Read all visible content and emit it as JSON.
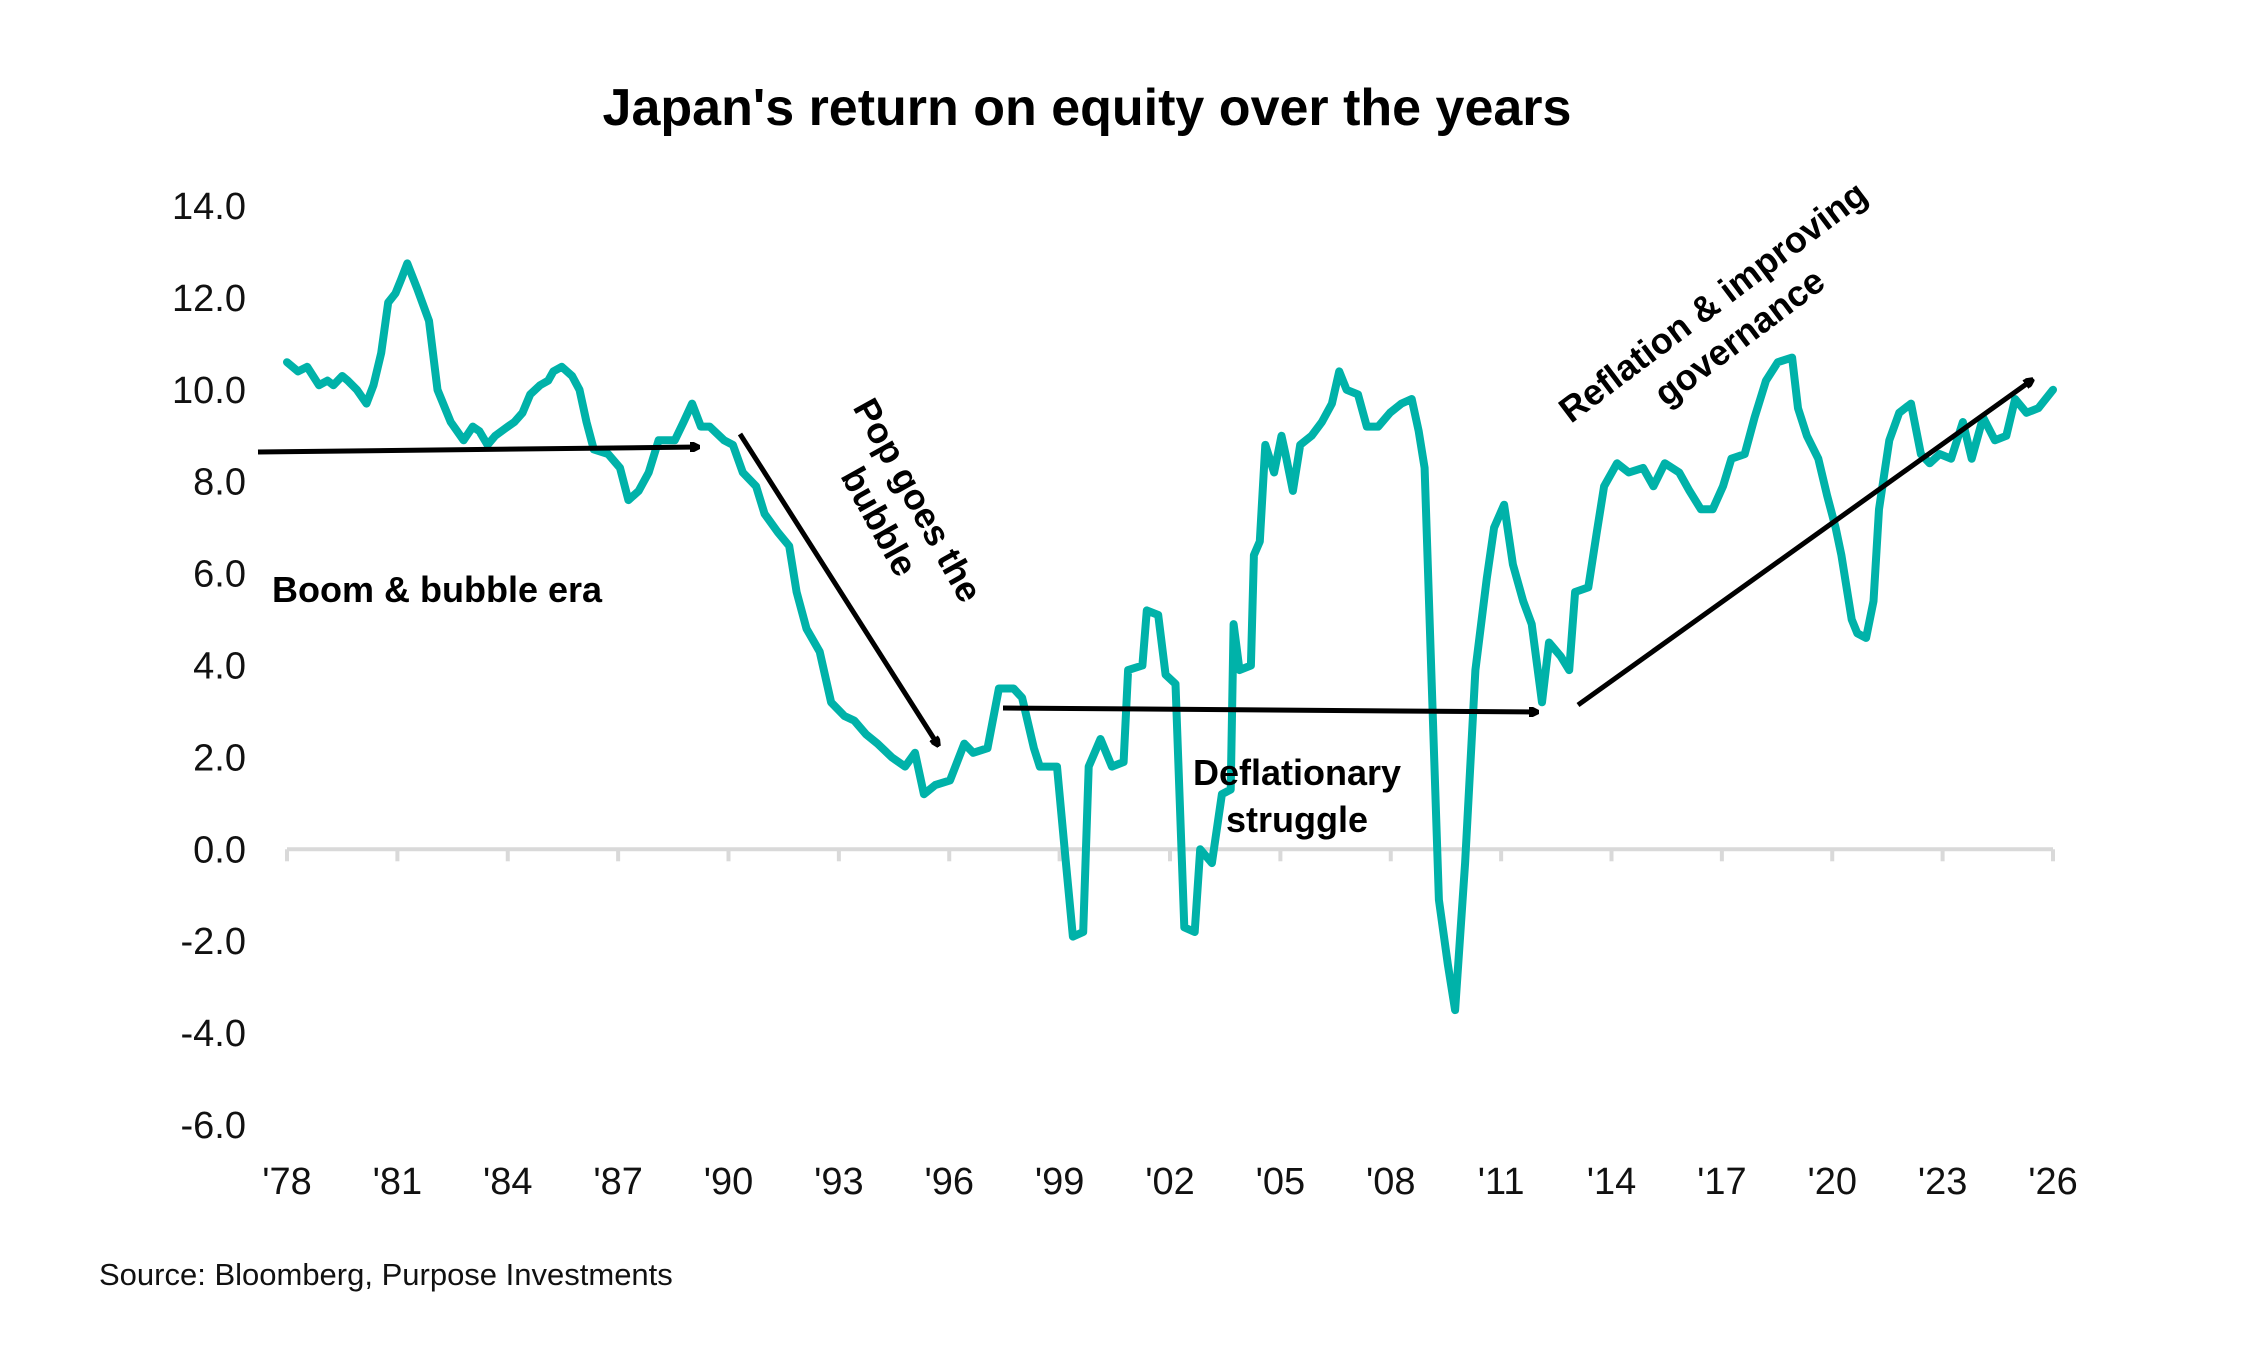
{
  "chart_data": {
    "type": "line",
    "title": "Japan's return on equity over the years",
    "xlabel": "",
    "ylabel": "",
    "ylim": [
      -6,
      14
    ],
    "xlim": [
      1978,
      2026
    ],
    "grid": false,
    "y_ticks": [
      "14.0",
      "12.0",
      "10.0",
      "8.0",
      "6.0",
      "4.0",
      "2.0",
      "0.0",
      "-2.0",
      "-4.0",
      "-6.0"
    ],
    "x_ticks": [
      "'78",
      "'81",
      "'84",
      "'87",
      "'90",
      "'93",
      "'96",
      "'99",
      "'02",
      "'05",
      "'08",
      "'11",
      "'14",
      "'17",
      "'20",
      "'23",
      "'26"
    ],
    "line_color": "#00B2A9",
    "series": [
      {
        "x": [
          1978.0,
          1978.3,
          1978.55,
          1978.87,
          1979.1,
          1979.26,
          1979.5,
          1979.65,
          1979.9,
          1980.16,
          1980.35,
          1980.56,
          1980.75,
          1980.95,
          1981.1,
          1981.27,
          1981.54,
          1981.86,
          1982.09,
          1982.45,
          1982.8,
          1983.05,
          1983.23,
          1983.45,
          1983.66,
          1984.0,
          1984.18,
          1984.4,
          1984.61,
          1984.88,
          1985.1,
          1985.24,
          1985.47,
          1985.75,
          1985.95,
          1986.14,
          1986.34,
          1986.73,
          1987.05,
          1987.28,
          1987.56,
          1987.83,
          1988.1,
          1988.54,
          1988.78,
          1989.01,
          1989.25,
          1989.49,
          1989.88,
          1990.12,
          1990.39,
          1990.75,
          1990.98,
          1991.34,
          1991.65,
          1991.85,
          1992.12,
          1992.48,
          1992.79,
          1993.15,
          1993.42,
          1993.74,
          1994.05,
          1994.44,
          1994.8,
          1995.07,
          1995.31,
          1995.62,
          1996.02,
          1996.41,
          1996.65,
          1997.04,
          1997.35,
          1997.75,
          1997.98,
          1998.3,
          1998.46,
          1998.93,
          1999.16,
          1999.36,
          1999.64,
          1999.79,
          2000.11,
          2000.42,
          2000.74,
          2000.86,
          2001.25,
          2001.37,
          2001.68,
          2001.88,
          2002.15,
          2002.39,
          2002.67,
          2002.82,
          2003.14,
          2003.41,
          2003.65,
          2003.73,
          2003.89,
          2004.2,
          2004.28,
          2004.44,
          2004.59,
          2004.83,
          2005.03,
          2005.14,
          2005.34,
          2005.54,
          2005.85,
          2006.13,
          2006.4,
          2006.6,
          2006.8,
          2007.11,
          2007.35,
          2007.66,
          2007.98,
          2008.29,
          2008.57,
          2008.76,
          2008.92,
          2009.08,
          2009.31,
          2009.55,
          2009.75,
          2010.02,
          2010.3,
          2010.61,
          2010.81,
          2011.08,
          2011.32,
          2011.6,
          2011.83,
          2012.11,
          2012.3,
          2012.62,
          2012.85,
          2013.01,
          2013.37,
          2013.6,
          2013.8,
          2014.15,
          2014.47,
          2014.86,
          2015.14,
          2015.45,
          2015.84,
          2016.12,
          2016.43,
          2016.75,
          2017.03,
          2017.26,
          2017.62,
          2017.89,
          2018.2,
          2018.52,
          2018.91,
          2019.07,
          2019.31,
          2019.62,
          2019.86,
          2020.09,
          2020.25,
          2020.53,
          2020.68,
          2020.92,
          2021.12,
          2021.27,
          2021.55,
          2021.82,
          2022.14,
          2022.41,
          2022.65,
          2022.92,
          2023.23,
          2023.55,
          2023.79,
          2024.1,
          2024.42,
          2024.73,
          2024.97,
          2025.28,
          2025.6,
          2026.0
        ],
        "y": [
          10.6,
          10.4,
          10.5,
          10.1,
          10.2,
          10.1,
          10.3,
          10.2,
          10.0,
          9.7,
          10.1,
          10.8,
          11.9,
          12.1,
          12.4,
          12.75,
          12.2,
          11.5,
          10.0,
          9.3,
          8.9,
          9.2,
          9.1,
          8.8,
          9.0,
          9.2,
          9.3,
          9.5,
          9.9,
          10.1,
          10.2,
          10.4,
          10.5,
          10.3,
          10.0,
          9.3,
          8.7,
          8.6,
          8.3,
          7.6,
          7.8,
          8.2,
          8.9,
          8.9,
          9.3,
          9.7,
          9.2,
          9.2,
          8.9,
          8.8,
          8.2,
          7.9,
          7.3,
          6.9,
          6.6,
          5.6,
          4.8,
          4.3,
          3.2,
          2.9,
          2.8,
          2.5,
          2.3,
          2.0,
          1.8,
          2.1,
          1.2,
          1.4,
          1.5,
          2.3,
          2.1,
          2.2,
          3.5,
          3.5,
          3.3,
          2.2,
          1.8,
          1.8,
          -0.2,
          -1.9,
          -1.8,
          1.8,
          2.4,
          1.8,
          1.9,
          3.9,
          4.0,
          5.2,
          5.1,
          3.8,
          3.6,
          -1.7,
          -1.8,
          0.0,
          -0.3,
          1.2,
          1.3,
          4.9,
          3.9,
          4.0,
          6.4,
          6.7,
          8.8,
          8.2,
          9.0,
          8.6,
          7.8,
          8.8,
          9.0,
          9.3,
          9.7,
          10.4,
          10.0,
          9.9,
          9.2,
          9.2,
          9.5,
          9.7,
          9.8,
          9.1,
          8.3,
          4.4,
          -1.1,
          -2.5,
          -3.5,
          -0.3,
          3.9,
          5.9,
          7.0,
          7.5,
          6.2,
          5.4,
          4.9,
          3.2,
          4.5,
          4.2,
          3.9,
          5.6,
          5.7,
          6.9,
          7.9,
          8.4,
          8.2,
          8.3,
          7.9,
          8.4,
          8.2,
          7.8,
          7.4,
          7.4,
          7.9,
          8.5,
          8.6,
          9.4,
          10.2,
          10.6,
          10.7,
          9.6,
          9.0,
          8.5,
          7.7,
          7.0,
          6.4,
          5.0,
          4.7,
          4.6,
          5.4,
          7.4,
          8.9,
          9.5,
          9.7,
          8.6,
          8.4,
          8.6,
          8.5,
          9.3,
          8.5,
          9.4,
          8.9,
          9.0,
          9.8,
          9.5,
          9.6,
          10.0
        ]
      }
    ],
    "annotations": [
      {
        "text": "Boom & bubble era"
      },
      {
        "text": "Pop goes the",
        "text2": "bubble"
      },
      {
        "text": "Deflationary",
        "text2": "struggle"
      },
      {
        "text": "Reflation & improving",
        "text2": "governance"
      }
    ],
    "source": "Source: Bloomberg, Purpose Investments"
  }
}
